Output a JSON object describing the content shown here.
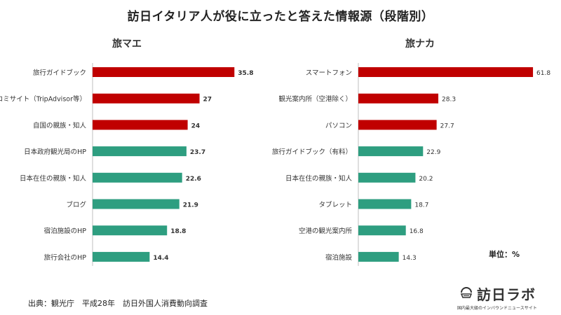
{
  "title": "訪日イタリア人が役に立ったと答えた情報源（段階別）",
  "source": "出典：観光庁　平成28年　訪日外国人消費動向調査",
  "unit": "単位：%",
  "logo": {
    "name": "訪日ラボ",
    "tagline": "国内最大級のインバウンドニュースサイト",
    "icon": "logo-mark-icon"
  },
  "colors": {
    "highlight": "#C00000",
    "normal": "#2E9E80"
  },
  "chart_data": [
    {
      "type": "bar",
      "orientation": "horizontal",
      "title": "旅マエ",
      "categories": [
        "旅行ガイドブック",
        "口コミサイト（TripAdvisor等）",
        "自国の親族・知人",
        "日本政府観光局のHP",
        "日本在住の親族・知人",
        "ブログ",
        "宿泊施設のHP",
        "旅行会社のHP"
      ],
      "values": [
        35.8,
        27,
        24,
        23.7,
        22.6,
        21.9,
        18.8,
        14.4
      ],
      "labels": [
        "35.8",
        "27",
        "24",
        "23.7",
        "22.6",
        "21.9",
        "18.8",
        "14.4"
      ],
      "highlight_top": 3,
      "xlim": [
        0,
        40
      ],
      "grid": false
    },
    {
      "type": "bar",
      "orientation": "horizontal",
      "title": "旅ナカ",
      "categories": [
        "スマートフォン",
        "観光案内所（空港除く）",
        "パソコン",
        "旅行ガイドブック（有料）",
        "日本在住の親族・知人",
        "タブレット",
        "空港の観光案内所",
        "宿泊施設"
      ],
      "values": [
        61.8,
        28.3,
        27.7,
        22.9,
        20.2,
        18.7,
        16.8,
        14.3
      ],
      "labels": [
        "61.8",
        "28.3",
        "27.7",
        "22.9",
        "20.2",
        "18.7",
        "16.8",
        "14.3"
      ],
      "highlight_top": 3,
      "xlim": [
        0,
        65
      ],
      "grid": false
    }
  ]
}
